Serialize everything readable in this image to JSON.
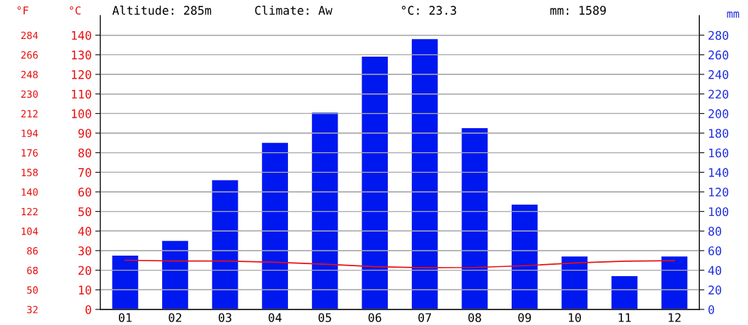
{
  "chart_data": {
    "type": "bar",
    "categories": [
      "01",
      "02",
      "03",
      "04",
      "05",
      "06",
      "07",
      "08",
      "09",
      "10",
      "11",
      "12"
    ],
    "series": [
      {
        "axis": "y2",
        "color": "#0018f0",
        "values": [
          55,
          70,
          132,
          170,
          201,
          258,
          276,
          185,
          107,
          54,
          34,
          54
        ]
      },
      {
        "type": "line",
        "axis": "y",
        "color": "#e81010",
        "values": [
          25.1,
          24.7,
          24.7,
          24.1,
          23.1,
          21.8,
          21.3,
          21.4,
          22.3,
          23.7,
          24.6,
          24.9
        ]
      }
    ],
    "ylabel": "°C",
    "y2label": "mm",
    "y3label": "°F",
    "ylim": [
      0,
      150
    ],
    "yticks": [
      0,
      10,
      20,
      30,
      40,
      50,
      60,
      70,
      80,
      90,
      100,
      110,
      120,
      130,
      140
    ],
    "y2lim": [
      0,
      300
    ],
    "y2ticks": [
      0,
      20,
      40,
      60,
      80,
      100,
      120,
      140,
      160,
      180,
      200,
      220,
      240,
      260,
      280
    ],
    "y3lim": [
      32,
      302
    ],
    "y3ticks": [
      32,
      50,
      68,
      86,
      104,
      122,
      140,
      158,
      176,
      194,
      212,
      230,
      248,
      266,
      284
    ],
    "grid": "y",
    "marker": "none",
    "line_style": "solid",
    "annotations": [
      "Altitude: 285m",
      "Climate: Aw",
      "°C: 23.3",
      "mm: 1589"
    ]
  }
}
